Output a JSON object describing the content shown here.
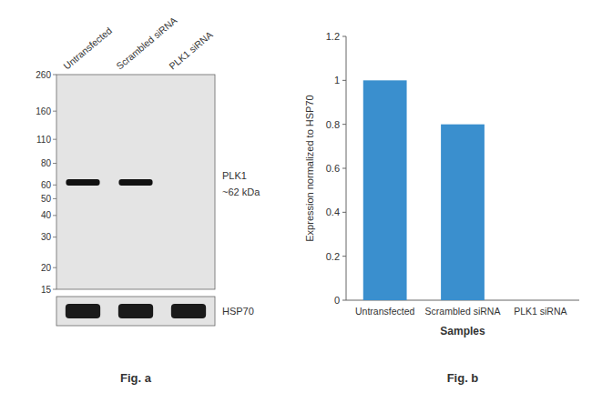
{
  "chart_data": [
    {
      "type": "blot",
      "title": "Fig. a",
      "categories": [
        "Untransfected",
        "Scrambled siRNA",
        "PLK1 siRNA"
      ],
      "log": "y",
      "ylim": [
        15,
        260
      ],
      "yticks": [
        260,
        160,
        110,
        80,
        60,
        50,
        40,
        30,
        20,
        15
      ],
      "series": [
        {
          "name": "PLK1",
          "color": "#111111",
          "values": [
            62,
            62,
            null
          ]
        }
      ],
      "annotations": [
        "~62 kDa",
        "HSP70"
      ]
    },
    {
      "type": "bar",
      "title": "Fig. b",
      "categories": [
        "Untransfected",
        "Scrambled siRNA",
        "PLK1 siRNA"
      ],
      "values": [
        1.0,
        0.8,
        0.0
      ],
      "color": "#3a8fce",
      "xlabel": "Samples",
      "ylabel": "Expression normalized to HSP70",
      "ylim": [
        0,
        1.2
      ],
      "yticks": [
        0,
        0.2,
        0.4,
        0.6,
        0.8,
        1.0,
        1.2
      ]
    }
  ]
}
